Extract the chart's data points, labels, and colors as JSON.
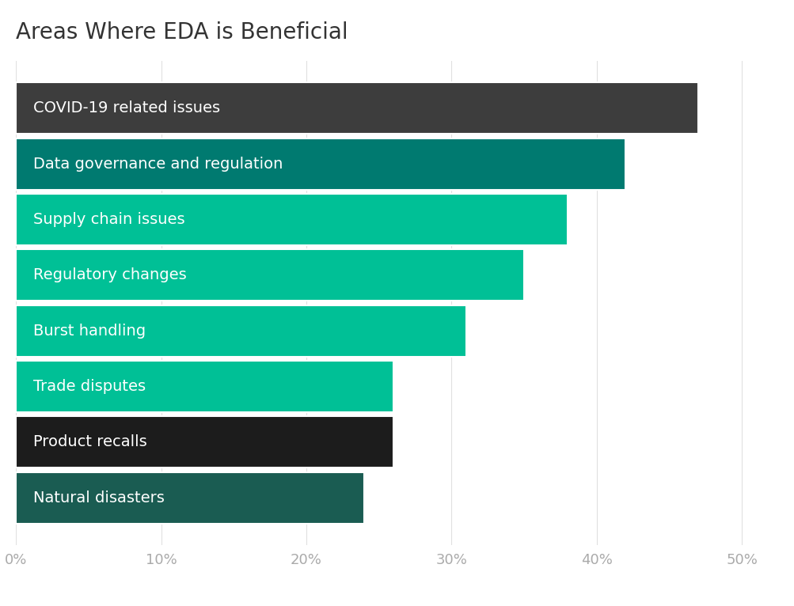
{
  "title": "Areas Where EDA is Beneficial",
  "categories": [
    "Natural disasters",
    "Product recalls",
    "Trade disputes",
    "Burst handling",
    "Regulatory changes",
    "Supply chain issues",
    "Data governance and regulation",
    "COVID-19 related issues"
  ],
  "values": [
    0.24,
    0.26,
    0.26,
    0.31,
    0.35,
    0.38,
    0.42,
    0.47
  ],
  "bar_colors": [
    "#1a5c52",
    "#1c1c1c",
    "#00c096",
    "#00c096",
    "#00c096",
    "#00c096",
    "#007a70",
    "#3d3d3d"
  ],
  "xlim": [
    0,
    0.52
  ],
  "xtick_values": [
    0.0,
    0.1,
    0.2,
    0.3,
    0.4,
    0.5
  ],
  "xtick_labels": [
    "0%",
    "10%",
    "20%",
    "30%",
    "40%",
    "50%"
  ],
  "title_fontsize": 20,
  "label_fontsize": 14,
  "tick_fontsize": 13,
  "background_color": "#ffffff",
  "bar_height": 0.92,
  "text_color": "#ffffff",
  "title_color": "#333333",
  "grid_color": "#e0e0e0",
  "tick_color": "#aaaaaa"
}
